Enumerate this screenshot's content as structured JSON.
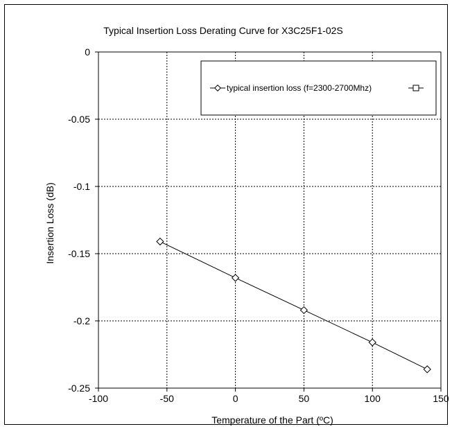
{
  "chart_data": {
    "type": "line",
    "title": "Typical Insertion  Loss Derating Curve for X3C25F1-02S",
    "xlabel": "Temperature of the Part (ºC)",
    "ylabel": "Insertion Loss (dB)",
    "xlim": [
      -100,
      150
    ],
    "ylim": [
      -0.25,
      0
    ],
    "xticks": [
      -100,
      -50,
      0,
      50,
      100,
      150
    ],
    "yticks": [
      0,
      -0.05,
      -0.1,
      -0.15,
      -0.2,
      -0.25
    ],
    "xtick_labels": [
      "-100",
      "-50",
      "0",
      "50",
      "100",
      "150"
    ],
    "ytick_labels": [
      "0",
      "-0.05",
      "-0.1",
      "-0.15",
      "-0.2",
      "-0.25"
    ],
    "grid": true,
    "legend_position": "top-right",
    "series": [
      {
        "name": "typical insertion loss (f=2300-2700Mhz)",
        "marker": "diamond",
        "color": "#000000",
        "x": [
          -55,
          0,
          50,
          100,
          140
        ],
        "y": [
          -0.141,
          -0.168,
          -0.192,
          -0.216,
          -0.236
        ]
      },
      {
        "name": "",
        "marker": "square",
        "color": "#000000",
        "x": [],
        "y": []
      }
    ]
  }
}
